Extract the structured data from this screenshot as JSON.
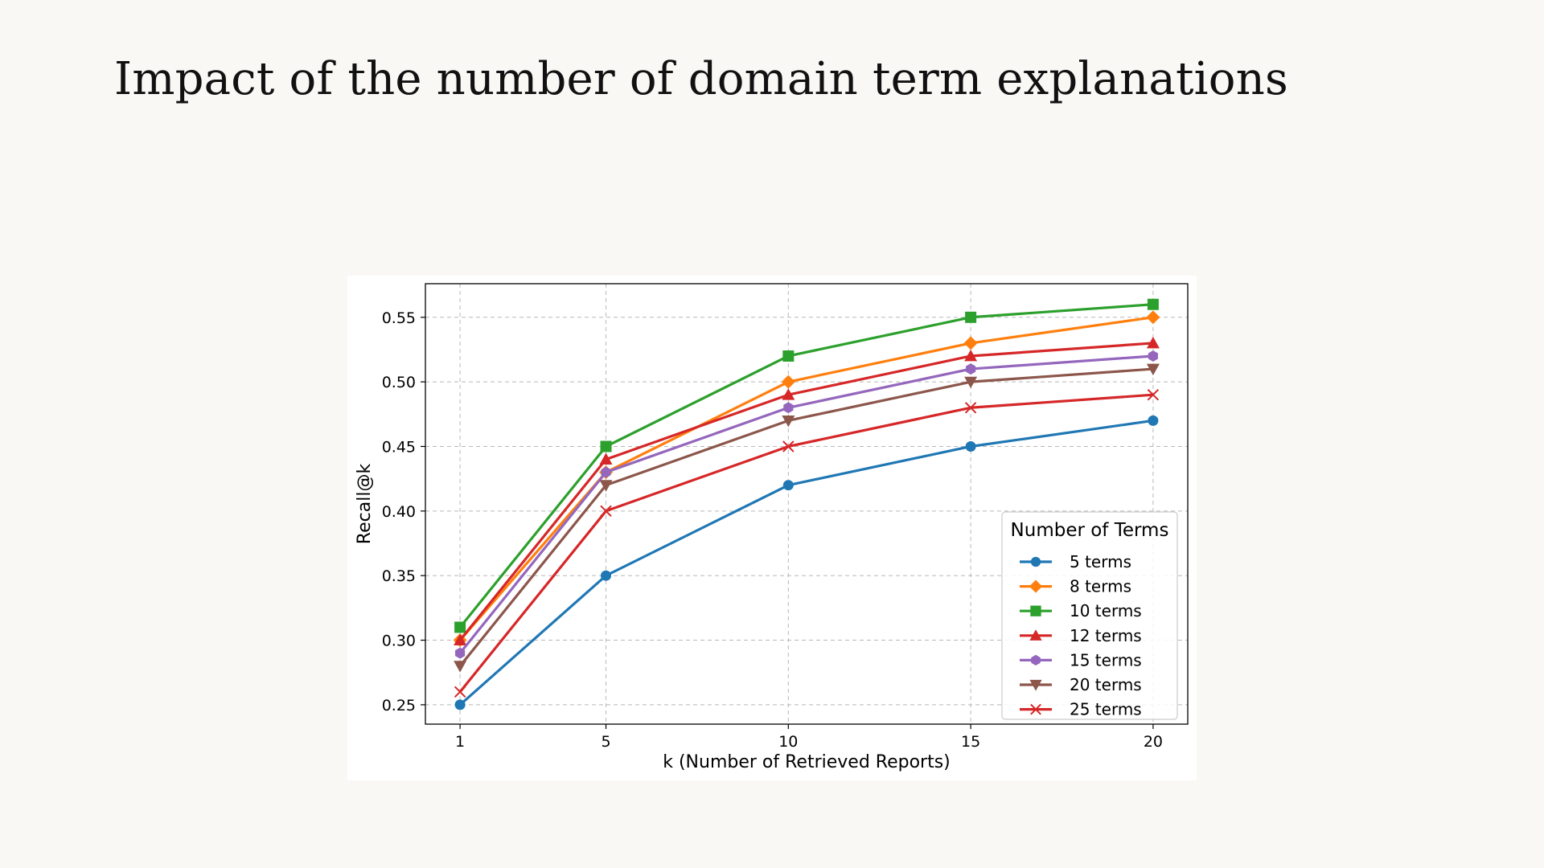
{
  "slide": {
    "title": "Impact of the number of domain term explanations"
  },
  "chart_data": {
    "type": "line",
    "x": [
      1,
      5,
      10,
      15,
      20
    ],
    "xlabel": "k (Number of Retrieved Reports)",
    "ylabel": "Recall@k",
    "xlim": [
      0.05,
      20.95
    ],
    "ylim": [
      0.235,
      0.576
    ],
    "xticks": [
      "1",
      "5",
      "10",
      "15",
      "20"
    ],
    "yticks": [
      0.25,
      0.3,
      0.35,
      0.4,
      0.45,
      0.5,
      0.55
    ],
    "ytick_labels": [
      "0.25",
      "0.30",
      "0.35",
      "0.40",
      "0.45",
      "0.50",
      "0.55"
    ],
    "grid": true,
    "legend": {
      "title": "Number of Terms",
      "placement": "lower-right"
    },
    "series": [
      {
        "name": "5 terms",
        "color": "#1f77b4",
        "marker": "circle",
        "values": [
          0.25,
          0.35,
          0.42,
          0.45,
          0.47
        ]
      },
      {
        "name": "8 terms",
        "color": "#ff7f0e",
        "marker": "diamond",
        "values": [
          0.3,
          0.43,
          0.5,
          0.53,
          0.55
        ]
      },
      {
        "name": "10 terms",
        "color": "#2ca02c",
        "marker": "square",
        "values": [
          0.31,
          0.45,
          0.52,
          0.55,
          0.56
        ]
      },
      {
        "name": "12 terms",
        "color": "#d62728",
        "marker": "triangle-up",
        "values": [
          0.3,
          0.44,
          0.49,
          0.52,
          0.53
        ]
      },
      {
        "name": "15 terms",
        "color": "#9467bd",
        "marker": "hexagon",
        "values": [
          0.29,
          0.43,
          0.48,
          0.51,
          0.52
        ]
      },
      {
        "name": "20 terms",
        "color": "#8c564b",
        "marker": "triangle-down",
        "values": [
          0.28,
          0.42,
          0.47,
          0.5,
          0.51
        ]
      },
      {
        "name": "25 terms",
        "color": "#d62728",
        "marker": "x",
        "values": [
          0.26,
          0.4,
          0.45,
          0.48,
          0.49
        ]
      }
    ]
  }
}
